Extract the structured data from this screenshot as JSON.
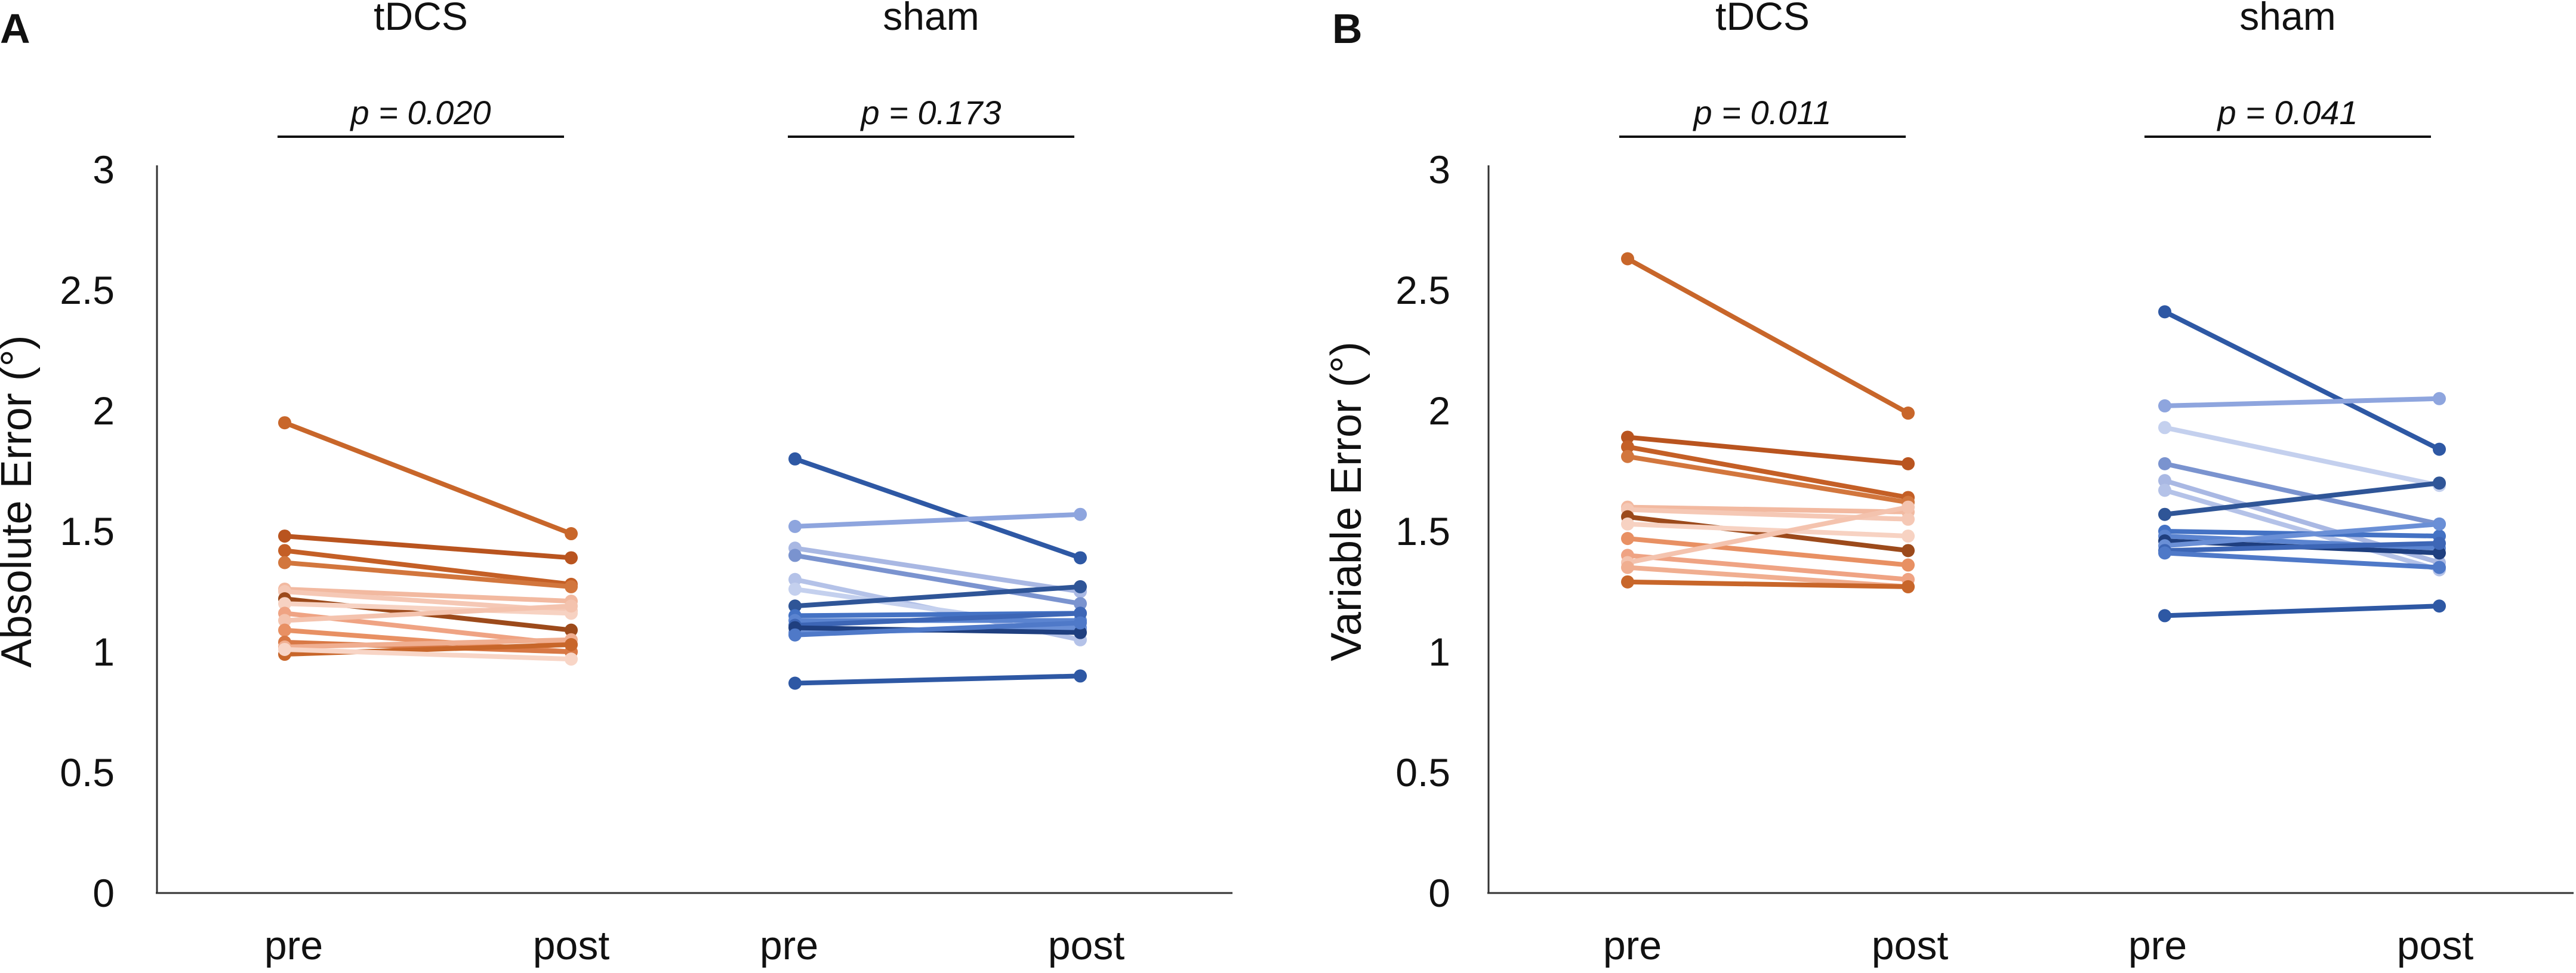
{
  "chart_data": [
    {
      "type": "line",
      "panel": "A",
      "ylabel": "Absolute Error (°)",
      "ylim": [
        0,
        3
      ],
      "yticks": [
        "0",
        "0.5",
        "1",
        "1.5",
        "2",
        "2.5",
        "3"
      ],
      "groups": [
        {
          "name": "tDCS",
          "p_label": "p = 0.020",
          "categories": [
            "pre",
            "post"
          ],
          "series": [
            {
              "color": "#C8662A",
              "values": [
                1.95,
                1.49
              ]
            },
            {
              "color": "#B9541F",
              "values": [
                1.48,
                1.39
              ]
            },
            {
              "color": "#C45F26",
              "values": [
                1.42,
                1.28
              ]
            },
            {
              "color": "#D2763D",
              "values": [
                1.37,
                1.27
              ]
            },
            {
              "color": "#F2B9A0",
              "values": [
                1.26,
                1.21
              ]
            },
            {
              "color": "#F5C8B5",
              "values": [
                1.25,
                1.17
              ]
            },
            {
              "color": "#9C4A1B",
              "values": [
                1.22,
                1.09
              ]
            },
            {
              "color": "#F7D2C2",
              "values": [
                1.2,
                1.16
              ]
            },
            {
              "color": "#EFA383",
              "values": [
                1.16,
                1.03
              ]
            },
            {
              "color": "#F4C3AE",
              "values": [
                1.13,
                1.19
              ]
            },
            {
              "color": "#E89063",
              "values": [
                1.09,
                1.0
              ]
            },
            {
              "color": "#D87845",
              "values": [
                1.04,
                1.0
              ]
            },
            {
              "color": "#F0AE90",
              "values": [
                1.02,
                1.05
              ]
            },
            {
              "color": "#C8662A",
              "values": [
                0.99,
                1.03
              ]
            },
            {
              "color": "#F8D5C6",
              "values": [
                1.01,
                0.97
              ]
            }
          ]
        },
        {
          "name": "sham",
          "p_label": "p = 0.173",
          "categories": [
            "pre",
            "post"
          ],
          "series": [
            {
              "color": "#2E58A4",
              "values": [
                1.8,
                1.39
              ]
            },
            {
              "color": "#8EA5DE",
              "values": [
                1.52,
                1.57
              ]
            },
            {
              "color": "#A9B8E3",
              "values": [
                1.43,
                1.25
              ]
            },
            {
              "color": "#7A93CF",
              "values": [
                1.4,
                1.2
              ]
            },
            {
              "color": "#B4C2E8",
              "values": [
                1.3,
                1.05
              ]
            },
            {
              "color": "#C4D0EE",
              "values": [
                1.26,
                1.09
              ]
            },
            {
              "color": "#2F5597",
              "values": [
                1.19,
                1.27
              ]
            },
            {
              "color": "#4472C4",
              "values": [
                1.15,
                1.16
              ]
            },
            {
              "color": "#5B84D0",
              "values": [
                1.13,
                1.13
              ]
            },
            {
              "color": "#3D66B6",
              "values": [
                1.11,
                1.16
              ]
            },
            {
              "color": "#6A8FD6",
              "values": [
                1.08,
                1.1
              ]
            },
            {
              "color": "#1F3F7F",
              "values": [
                1.1,
                1.08
              ]
            },
            {
              "color": "#4F79C8",
              "values": [
                1.07,
                1.12
              ]
            },
            {
              "color": "#2E58A4",
              "values": [
                0.87,
                0.9
              ]
            }
          ]
        }
      ]
    },
    {
      "type": "line",
      "panel": "B",
      "ylabel": "Variable Error (°)",
      "ylim": [
        0,
        3
      ],
      "yticks": [
        "0",
        "0.5",
        "1",
        "1.5",
        "2",
        "2.5",
        "3"
      ],
      "groups": [
        {
          "name": "tDCS",
          "p_label": "p = 0.011",
          "categories": [
            "pre",
            "post"
          ],
          "series": [
            {
              "color": "#C8662A",
              "values": [
                2.63,
                1.99
              ]
            },
            {
              "color": "#B9541F",
              "values": [
                1.89,
                1.78
              ]
            },
            {
              "color": "#C45F26",
              "values": [
                1.85,
                1.64
              ]
            },
            {
              "color": "#D2763D",
              "values": [
                1.81,
                1.62
              ]
            },
            {
              "color": "#F2B9A0",
              "values": [
                1.6,
                1.58
              ]
            },
            {
              "color": "#F5C8B5",
              "values": [
                1.59,
                1.55
              ]
            },
            {
              "color": "#9C4A1B",
              "values": [
                1.56,
                1.42
              ]
            },
            {
              "color": "#F7D2C2",
              "values": [
                1.53,
                1.48
              ]
            },
            {
              "color": "#E89063",
              "values": [
                1.47,
                1.36
              ]
            },
            {
              "color": "#EFA383",
              "values": [
                1.4,
                1.3
              ]
            },
            {
              "color": "#F4C3AE",
              "values": [
                1.37,
                1.6
              ]
            },
            {
              "color": "#F0AE90",
              "values": [
                1.35,
                1.27
              ]
            },
            {
              "color": "#C8662A",
              "values": [
                1.29,
                1.27
              ]
            }
          ]
        },
        {
          "name": "sham",
          "p_label": "p = 0.041",
          "categories": [
            "pre",
            "post"
          ],
          "series": [
            {
              "color": "#2E58A4",
              "values": [
                2.41,
                1.84
              ]
            },
            {
              "color": "#8EA5DE",
              "values": [
                2.02,
                2.05
              ]
            },
            {
              "color": "#C4D0EE",
              "values": [
                1.93,
                1.69
              ]
            },
            {
              "color": "#7A93CF",
              "values": [
                1.78,
                1.53
              ]
            },
            {
              "color": "#A9B8E3",
              "values": [
                1.71,
                1.37
              ]
            },
            {
              "color": "#B4C2E8",
              "values": [
                1.67,
                1.34
              ]
            },
            {
              "color": "#2F5597",
              "values": [
                1.57,
                1.7
              ]
            },
            {
              "color": "#4472C4",
              "values": [
                1.5,
                1.48
              ]
            },
            {
              "color": "#5B84D0",
              "values": [
                1.48,
                1.43
              ]
            },
            {
              "color": "#1F3F7F",
              "values": [
                1.46,
                1.41
              ]
            },
            {
              "color": "#6A8FD6",
              "values": [
                1.44,
                1.53
              ]
            },
            {
              "color": "#3D66B6",
              "values": [
                1.42,
                1.45
              ]
            },
            {
              "color": "#4F79C8",
              "values": [
                1.41,
                1.35
              ]
            },
            {
              "color": "#2E58A4",
              "values": [
                1.15,
                1.19
              ]
            }
          ]
        }
      ]
    }
  ]
}
